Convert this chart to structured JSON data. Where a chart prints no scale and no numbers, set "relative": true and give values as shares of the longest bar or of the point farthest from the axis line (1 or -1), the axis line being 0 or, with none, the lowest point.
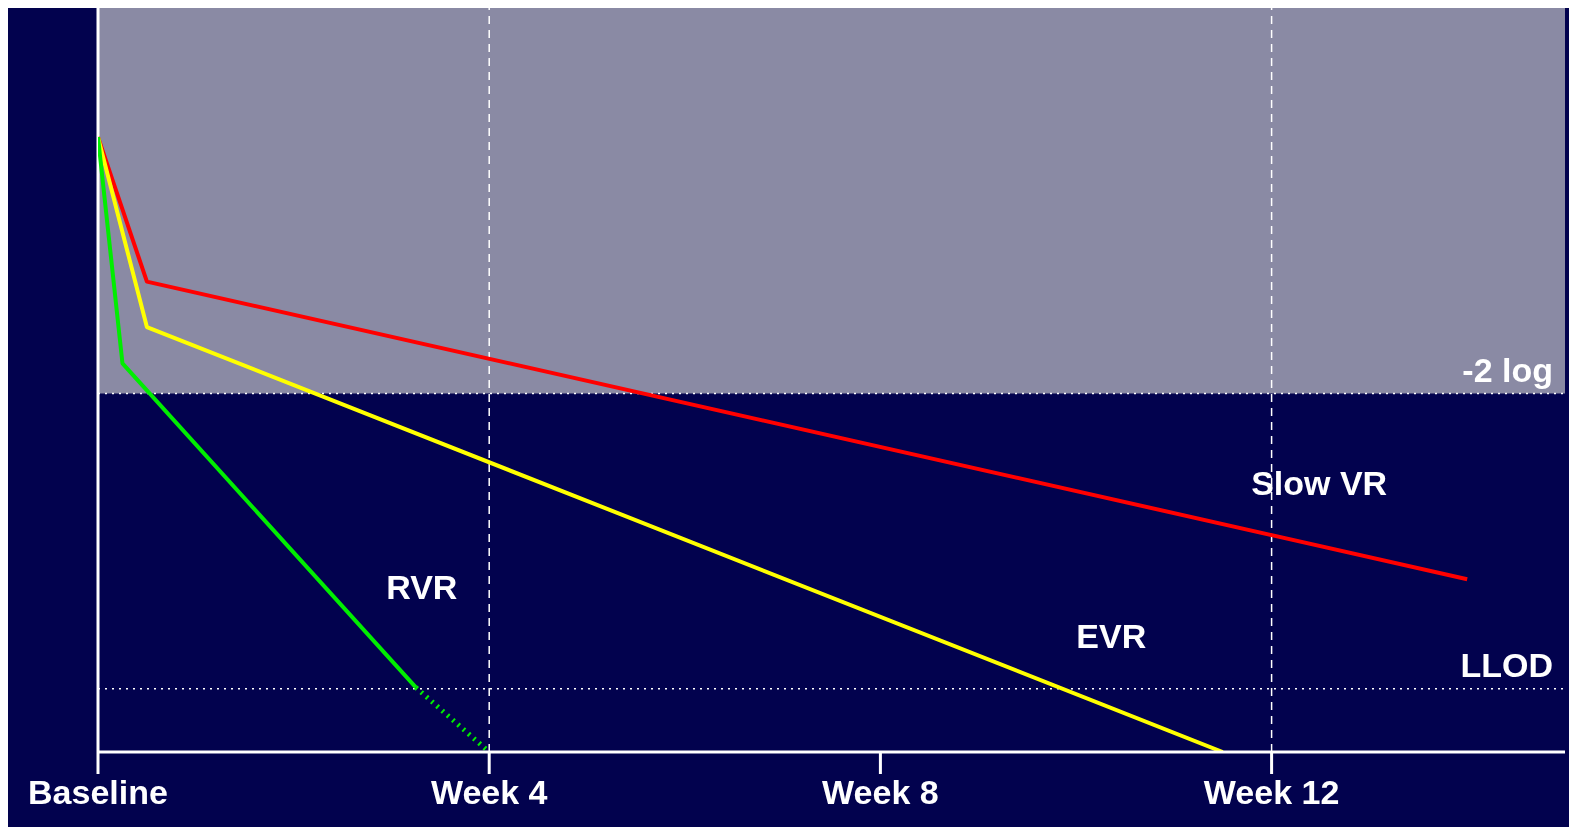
{
  "chart_data": {
    "type": "line",
    "relative": true,
    "marker": "none",
    "categories": [
      "Baseline",
      null,
      null,
      null,
      null,
      null,
      null,
      null,
      null,
      null,
      null,
      null,
      null,
      null,
      null,
      null,
      "Week 4",
      null,
      null,
      null,
      null,
      null,
      null,
      null,
      null,
      null,
      null,
      null,
      null,
      null,
      null,
      null,
      "Week 8",
      null,
      null,
      null,
      null,
      null,
      null,
      null,
      null,
      null,
      null,
      null,
      null,
      null,
      null,
      null,
      "Week 12",
      null,
      null,
      null,
      null,
      null,
      null,
      null,
      null,
      null,
      null,
      null,
      null
    ],
    "series": [
      {
        "name": "Slow VR",
        "color": "#ff0000",
        "line_style": "solid",
        "values": [
          1,
          null,
          0.765,
          null,
          null,
          null,
          null,
          null,
          null,
          null,
          null,
          null,
          null,
          null,
          null,
          null,
          null,
          null,
          null,
          null,
          null,
          null,
          null,
          null,
          null,
          null,
          null,
          null,
          null,
          null,
          null,
          null,
          null,
          null,
          null,
          null,
          null,
          null,
          null,
          null,
          null,
          null,
          null,
          null,
          null,
          null,
          null,
          null,
          null,
          null,
          null,
          null,
          null,
          null,
          null,
          null,
          0.281,
          null,
          null,
          null,
          null
        ]
      },
      {
        "name": "EVR",
        "color": "#ffff00",
        "line_style": "solid",
        "values": [
          1,
          null,
          0.691,
          null,
          null,
          null,
          null,
          null,
          null,
          null,
          null,
          null,
          null,
          null,
          null,
          null,
          null,
          null,
          null,
          null,
          null,
          null,
          null,
          null,
          null,
          null,
          null,
          null,
          null,
          null,
          null,
          null,
          null,
          null,
          null,
          null,
          null,
          null,
          null,
          null,
          null,
          null,
          null,
          null,
          null,
          null,
          0,
          null,
          null,
          null,
          null,
          null,
          null,
          null,
          null,
          null,
          null,
          null,
          null,
          null,
          null
        ]
      },
      {
        "name": "RVR",
        "color": "#00ee00",
        "line_style": "solid",
        "values": [
          1,
          0.632,
          null,
          null,
          null,
          null,
          null,
          null,
          null,
          null,
          null,
          null,
          null,
          0.105,
          null,
          null,
          null,
          null,
          null,
          null,
          null,
          null,
          null,
          null,
          null,
          null,
          null,
          null,
          null,
          null,
          null,
          null,
          null,
          null,
          null,
          null,
          null,
          null,
          null,
          null,
          null,
          null,
          null,
          null,
          null,
          null,
          null,
          null,
          null,
          null,
          null,
          null,
          null,
          null,
          null,
          null,
          null,
          null,
          null,
          null,
          null
        ]
      },
      {
        "color": "#00ee00",
        "line_style": "dotted",
        "values": [
          null,
          null,
          null,
          null,
          null,
          null,
          null,
          null,
          null,
          null,
          null,
          null,
          null,
          0.105,
          null,
          null,
          0,
          null,
          null,
          null,
          null,
          null,
          null,
          null,
          null,
          null,
          null,
          null,
          null,
          null,
          null,
          null,
          null,
          null,
          null,
          null,
          null,
          null,
          null,
          null,
          null,
          null,
          null,
          null,
          null,
          null,
          null,
          null,
          null,
          null,
          null,
          null,
          null,
          null,
          null,
          null,
          null,
          null,
          null,
          null,
          null
        ]
      }
    ],
    "bands": [
      {
        "axis": "y",
        "from": 0.583,
        "to": 1.21,
        "color": "#8a8aa4"
      }
    ],
    "ref_lines": [
      {
        "axis": "y",
        "value": 0.583,
        "label": "-2 log",
        "color": "#ffffff",
        "line_style": "dotted"
      },
      {
        "axis": "y",
        "value": 0.103,
        "label": "LLOD",
        "color": "#ffffff",
        "line_style": "dotted"
      },
      {
        "axis": "x",
        "value": "Week 4",
        "color": "#ffffff",
        "line_style": "dashed"
      },
      {
        "axis": "x",
        "value": "Week 12",
        "color": "#ffffff",
        "line_style": "dashed"
      }
    ]
  }
}
